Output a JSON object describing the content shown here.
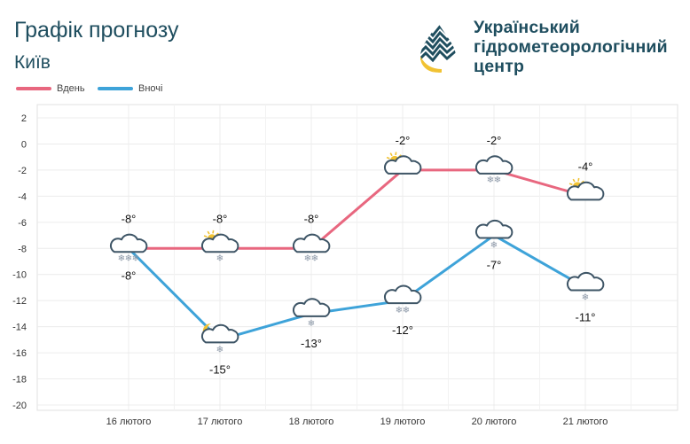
{
  "header": {
    "title": "Графік прогнозу",
    "city": "Київ"
  },
  "logo": {
    "line1": "Український",
    "line2": "гідрометеорологічний",
    "line3": "центр",
    "icon": "droplet-logo-icon"
  },
  "colors": {
    "day": "#e8677f",
    "night": "#3ea3d9",
    "text": "#1f4e5f",
    "grid": "#e6e6e6"
  },
  "chart_data": {
    "type": "line",
    "categories": [
      "16 лютого",
      "17 лютого",
      "18 лютого",
      "19 лютого",
      "20 лютого",
      "21 лютого"
    ],
    "ylim": [
      -20,
      2
    ],
    "yticks": [
      2,
      0,
      -2,
      -4,
      -6,
      -8,
      -10,
      -12,
      -14,
      -16,
      -18,
      -20
    ],
    "grid": true,
    "legend_position": "top-left",
    "series": [
      {
        "name": "Вдень",
        "values": [
          -8,
          -8,
          -8,
          -2,
          -2,
          -4
        ],
        "labels": [
          "-8°",
          "-8°",
          "-8°",
          "-2°",
          "-2°",
          "-4°"
        ],
        "icons": [
          "cloud-snow-icon",
          "partly-cloudy-snow-icon",
          "cloud-snow-icon",
          "partly-cloudy-icon",
          "cloud-snow-icon",
          "partly-cloudy-icon"
        ]
      },
      {
        "name": "Вночі",
        "values": [
          -8,
          -15,
          -13,
          -12,
          -7,
          -11
        ],
        "labels": [
          "-8°",
          "-15°",
          "-13°",
          "-12°",
          "-7°",
          "-11°"
        ],
        "icons": [
          "cloud-icon",
          "moon-cloud-snow-icon",
          "cloud-snow-icon",
          "cloud-snow-icon",
          "cloud-snow-icon",
          "cloud-snow-icon"
        ]
      }
    ]
  }
}
